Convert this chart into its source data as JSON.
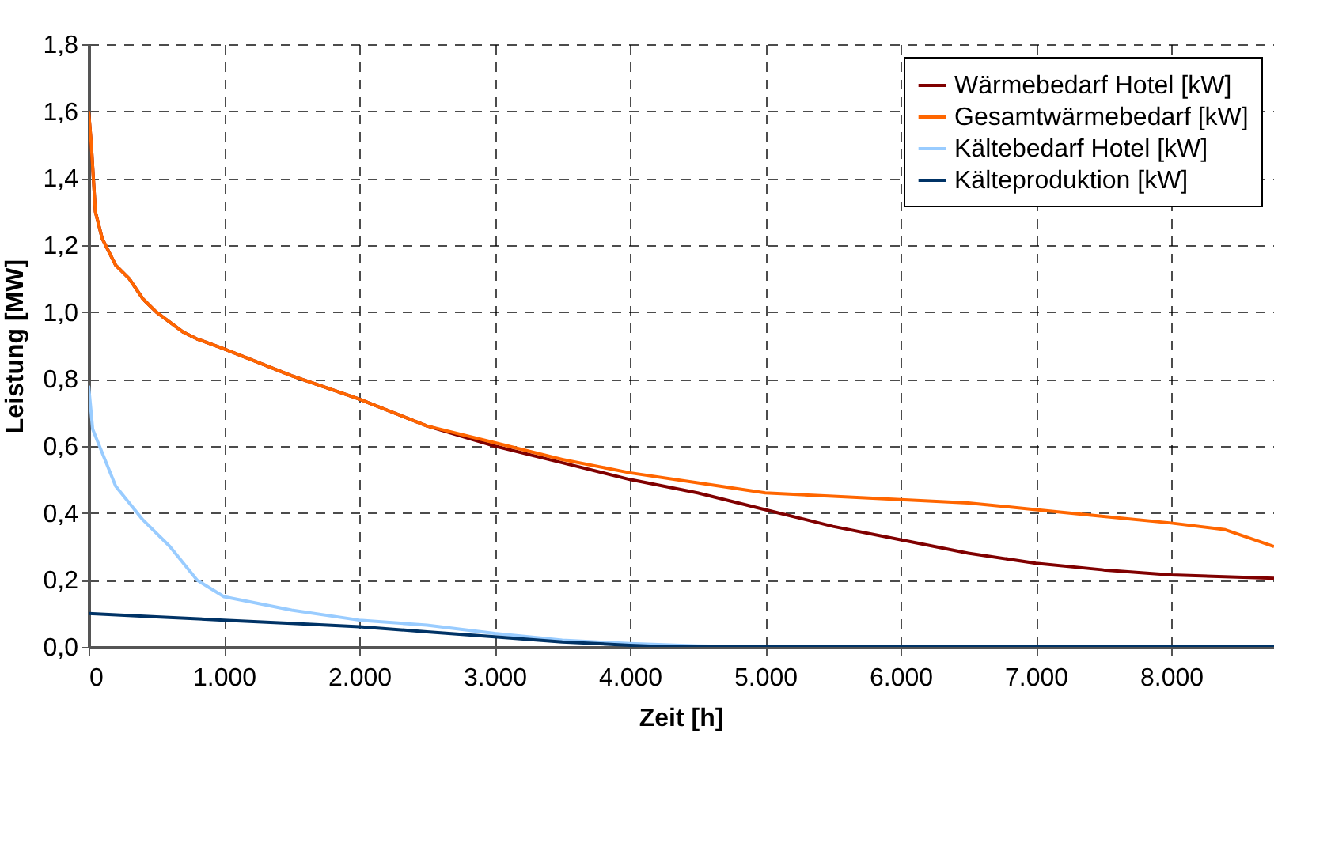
{
  "chart_data": {
    "type": "line",
    "xlabel": "Zeit [h]",
    "ylabel": "Leistung [MW]",
    "xlim": [
      0,
      8760
    ],
    "ylim": [
      0,
      1.8
    ],
    "xticks": [
      0,
      {
        "value": 1000,
        "label": "1.000"
      },
      {
        "value": 2000,
        "label": "2.000"
      },
      {
        "value": 3000,
        "label": "3.000"
      },
      {
        "value": 4000,
        "label": "4.000"
      },
      {
        "value": 5000,
        "label": "5.000"
      },
      {
        "value": 6000,
        "label": "6.000"
      },
      {
        "value": 7000,
        "label": "7.000"
      },
      {
        "value": 8000,
        "label": "8.000"
      }
    ],
    "yticks": [
      {
        "value": 0,
        "label": "0,0"
      },
      {
        "value": 0.2,
        "label": "0,2"
      },
      {
        "value": 0.4,
        "label": "0,4"
      },
      {
        "value": 0.6,
        "label": "0,6"
      },
      {
        "value": 0.8,
        "label": "0,8"
      },
      {
        "value": 1.0,
        "label": "1,0"
      },
      {
        "value": 1.2,
        "label": "1,2"
      },
      {
        "value": 1.4,
        "label": "1,4"
      },
      {
        "value": 1.6,
        "label": "1,6"
      },
      {
        "value": 1.8,
        "label": "1,8"
      }
    ],
    "grid": true,
    "legend": "top right",
    "marker": "none",
    "line_style": "solid",
    "series": [
      {
        "name": "Wärmebedarf Hotel [kW]",
        "color": "#800000",
        "x": [
          0,
          20,
          50,
          100,
          200,
          300,
          400,
          500,
          700,
          800,
          1000,
          1500,
          2000,
          2500,
          3000,
          3500,
          4000,
          4500,
          5000,
          5500,
          6000,
          6500,
          7000,
          7500,
          8000,
          8760
        ],
        "values": [
          1.6,
          1.5,
          1.3,
          1.22,
          1.14,
          1.1,
          1.04,
          1.0,
          0.94,
          0.92,
          0.89,
          0.81,
          0.74,
          0.66,
          0.6,
          0.55,
          0.5,
          0.46,
          0.41,
          0.36,
          0.32,
          0.28,
          0.25,
          0.23,
          0.215,
          0.205
        ]
      },
      {
        "name": "Gesamtwärmebedarf [kW]",
        "color": "#ff6600",
        "x": [
          0,
          20,
          50,
          100,
          200,
          300,
          400,
          500,
          700,
          800,
          1000,
          1500,
          2000,
          2500,
          3000,
          3500,
          4000,
          4500,
          5000,
          5500,
          6000,
          6500,
          7000,
          7500,
          8000,
          8400,
          8760
        ],
        "values": [
          1.6,
          1.5,
          1.3,
          1.22,
          1.14,
          1.1,
          1.04,
          1.0,
          0.94,
          0.92,
          0.89,
          0.81,
          0.74,
          0.66,
          0.61,
          0.56,
          0.52,
          0.49,
          0.46,
          0.45,
          0.44,
          0.43,
          0.41,
          0.39,
          0.37,
          0.35,
          0.3
        ]
      },
      {
        "name": "Kältebedarf  Hotel [kW]",
        "color": "#99ccff",
        "x": [
          0,
          30,
          100,
          200,
          400,
          600,
          800,
          1000,
          1500,
          2000,
          2500,
          3000,
          3500,
          4000,
          4500,
          5000,
          8760
        ],
        "values": [
          0.78,
          0.65,
          0.58,
          0.48,
          0.38,
          0.3,
          0.2,
          0.15,
          0.11,
          0.08,
          0.065,
          0.04,
          0.02,
          0.01,
          0.003,
          0,
          0
        ]
      },
      {
        "name": "Kälteproduktion [kW]",
        "color": "#003366",
        "x": [
          0,
          500,
          1000,
          1500,
          2000,
          2500,
          3000,
          3500,
          4000,
          4300,
          8760
        ],
        "values": [
          0.1,
          0.09,
          0.08,
          0.07,
          0.06,
          0.045,
          0.03,
          0.015,
          0.005,
          0,
          0
        ]
      }
    ]
  }
}
